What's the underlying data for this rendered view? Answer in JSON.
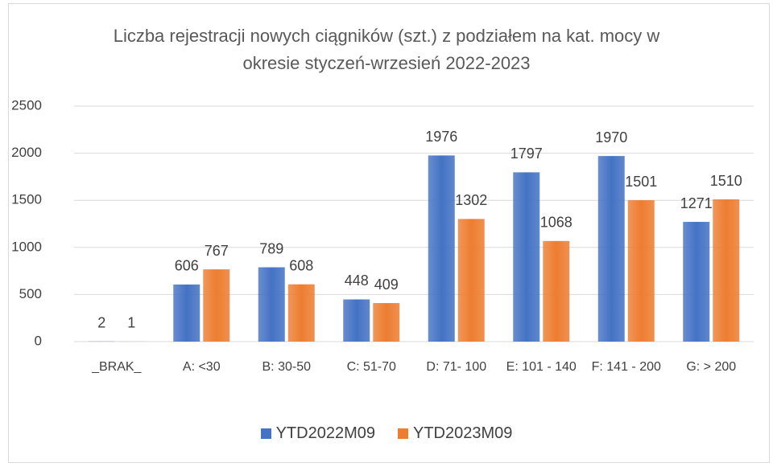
{
  "chart_data": {
    "type": "bar",
    "title": "Liczba rejestracji nowych ciągników (szt.) z podziałem na kat. mocy w okresie styczeń-wrzesień 2022-2023",
    "categories": [
      "_BRAK_",
      "A: <30",
      "B: 30-50",
      "C: 51-70",
      "D: 71- 100",
      "E: 101 - 140",
      "F: 141 - 200",
      "G: > 200"
    ],
    "series": [
      {
        "name": "YTD2022M09",
        "color": "#4472c4",
        "values": [
          2,
          606,
          789,
          448,
          1976,
          1797,
          1970,
          1271
        ]
      },
      {
        "name": "YTD2023M09",
        "color": "#ed7d31",
        "values": [
          1,
          767,
          608,
          409,
          1302,
          1068,
          1501,
          1510
        ]
      }
    ],
    "ylim": [
      0,
      2500
    ],
    "yticks": [
      0,
      500,
      1000,
      1500,
      2000,
      2500
    ],
    "grid": true,
    "legend": "bottom"
  }
}
